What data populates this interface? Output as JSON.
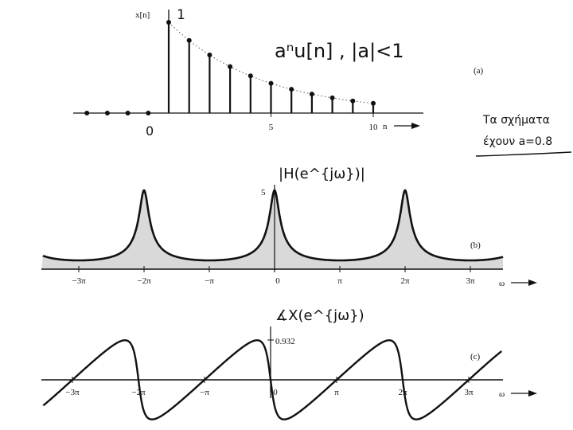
{
  "colors": {
    "ink": "#111111",
    "shade": "#b9b9b9",
    "bg": "#ffffff"
  },
  "notes": {
    "seq_formula": "aⁿu[n] , |a|<1",
    "one_label": "1",
    "zero_label": "0",
    "side_note_line1": "Τα σχήματα",
    "side_note_line2": "έχουν a=0.8",
    "mag_title": "|H(e^{jω})|",
    "phase_title": "∡X(e^{jω})"
  },
  "chart_data": [
    {
      "id": "a",
      "type": "stem",
      "panel_label": "(a)",
      "ylabel": "x[n]",
      "xlabel": "n",
      "n": [
        -4,
        -3,
        -2,
        -1,
        0,
        1,
        2,
        3,
        4,
        5,
        6,
        7,
        8,
        9,
        10
      ],
      "values": [
        0,
        0,
        0,
        0,
        1,
        0.8,
        0.64,
        0.512,
        0.4096,
        0.3277,
        0.2621,
        0.2097,
        0.1678,
        0.1342,
        0.1074
      ],
      "xticks": [
        {
          "value": 5,
          "label": "5"
        },
        {
          "value": 10,
          "label": "10"
        }
      ],
      "ylim": [
        0,
        1
      ],
      "envelope": "dotted"
    },
    {
      "id": "b",
      "type": "area",
      "panel_label": "(b)",
      "xlabel": "ω",
      "peak_label": "5",
      "a": 0.8,
      "function": "1/|1 - a e^{-jω}|",
      "peak_value": 5,
      "xlim": [
        -3.45,
        3.1
      ],
      "ylim": [
        0,
        5
      ],
      "xticks": [
        {
          "value": -3,
          "label": "−3π"
        },
        {
          "value": -2,
          "label": "−2π"
        },
        {
          "value": -1,
          "label": "−π"
        },
        {
          "value": 0,
          "label": "0"
        },
        {
          "value": 1,
          "label": "π"
        },
        {
          "value": 2,
          "label": "2π"
        },
        {
          "value": 3,
          "label": "3π"
        }
      ],
      "x_units": "π"
    },
    {
      "id": "c",
      "type": "line",
      "panel_label": "(c)",
      "xlabel": "ω",
      "a": 0.8,
      "function": "-arctan(a sinω / (1 - a cosω))",
      "max_label": "0.932",
      "max_value": 0.932,
      "xlim": [
        -3.45,
        3.1
      ],
      "ylim": [
        -0.932,
        0.932
      ],
      "xticks": [
        {
          "value": -3,
          "label": "−3π"
        },
        {
          "value": -2,
          "label": "−2π"
        },
        {
          "value": -1,
          "label": "−π"
        },
        {
          "value": 0,
          "label": "0"
        },
        {
          "value": 1,
          "label": "π"
        },
        {
          "value": 2,
          "label": "2π"
        },
        {
          "value": 3,
          "label": "3π"
        }
      ],
      "x_units": "π"
    }
  ]
}
